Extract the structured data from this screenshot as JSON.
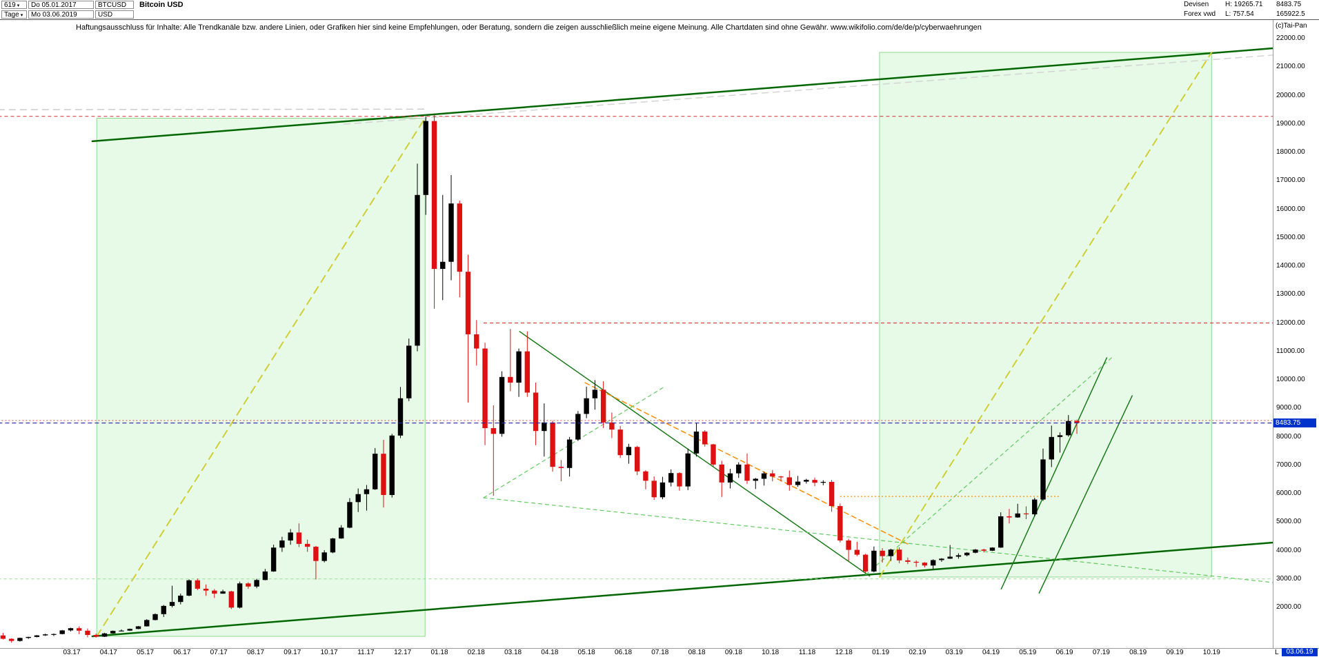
{
  "toolbar": {
    "bar_count": "619",
    "period_mode": "Tage",
    "start_date": "Do 05.01.2017",
    "end_date": "Mo 03.06.2019",
    "symbol": "BTCUSD",
    "currency": "USD",
    "title": "Bitcoin USD",
    "category": "Devisen",
    "source": "Forex vwd",
    "high_label": "H: 19265.71",
    "low_label": "L: 757.54",
    "corner_value_1": "8483.75",
    "corner_value_2": "165922.5"
  },
  "copyright": "(c)Tai-Pan",
  "disclaimer": "Haftungsausschluss für Inhalte: Alle Trendkanäle bzw. andere Linien, oder Grafiken hier sind keine Empfehlungen, oder Beratung, sondern die zeigen ausschließlich meine eigene Meinung. Alle Chartdaten sind ohne Gewähr.  www.wikifolio.com/de/de/p/cyberwaehrungen",
  "markers": {
    "current_price": "8483.75",
    "current_date": "03.06.19",
    "date_prefix": "L"
  },
  "chart_data": {
    "type": "candlestick",
    "title": "Bitcoin USD",
    "x_start": "05.01.2017",
    "x_end": "03.06.2019",
    "bars_total_daily": 619,
    "period_high": 19265.71,
    "period_low": 757.54,
    "last_close": 8483.75,
    "ylim": [
      2000,
      22000
    ],
    "y_ticks": [
      22000,
      21000,
      20000,
      19000,
      18000,
      17000,
      16000,
      15000,
      14000,
      13000,
      12000,
      11000,
      10000,
      9000,
      8000,
      7000,
      6000,
      5000,
      4000,
      3000,
      2000
    ],
    "x_ticks": [
      "03.17",
      "04.17",
      "05.17",
      "06.17",
      "07.17",
      "08.17",
      "09.17",
      "10.17",
      "11.17",
      "12.17",
      "01.18",
      "02.18",
      "03.18",
      "04.18",
      "05.18",
      "06.18",
      "07.18",
      "08.18",
      "09.18",
      "10.18",
      "11.18",
      "12.18",
      "01.19",
      "02.19",
      "03.19",
      "04.19",
      "05.19",
      "06.19",
      "07.19",
      "08.19",
      "09.19",
      "10.19"
    ],
    "colors": {
      "up": "#000000",
      "down": "#dd1111",
      "marker_blue": "#0033cc",
      "channel_green": "#006600"
    },
    "sampling_note": "daily chart approximated by weekly OHLC",
    "ohlc_weekly_approx": [
      [
        1013,
        1103,
        870,
        895
      ],
      [
        895,
        912,
        757.54,
        820
      ],
      [
        820,
        935,
        795,
        925
      ],
      [
        925,
        970,
        890,
        960
      ],
      [
        960,
        1025,
        945,
        1015
      ],
      [
        1015,
        1072,
        995,
        1050
      ],
      [
        1050,
        1082,
        990,
        1062
      ],
      [
        1062,
        1205,
        1050,
        1190
      ],
      [
        1190,
        1285,
        1150,
        1268
      ],
      [
        1268,
        1330,
        1060,
        1180
      ],
      [
        1180,
        1258,
        945,
        1030
      ],
      [
        1030,
        1080,
        930,
        968
      ],
      [
        968,
        1105,
        960,
        1085
      ],
      [
        1085,
        1185,
        1072,
        1172
      ],
      [
        1172,
        1225,
        1158,
        1183
      ],
      [
        1183,
        1255,
        1172,
        1242
      ],
      [
        1242,
        1345,
        1232,
        1333
      ],
      [
        1333,
        1585,
        1325,
        1555
      ],
      [
        1555,
        1788,
        1543,
        1762
      ],
      [
        1762,
        2085,
        1660,
        2052
      ],
      [
        2052,
        2760,
        2000,
        2190
      ],
      [
        2190,
        2485,
        2105,
        2412
      ],
      [
        2412,
        2985,
        2392,
        2952
      ],
      [
        2952,
        3012,
        2605,
        2655
      ],
      [
        2655,
        2805,
        2405,
        2590
      ],
      [
        2590,
        2645,
        2330,
        2482
      ],
      [
        2482,
        2622,
        2478,
        2562
      ],
      [
        2562,
        2582,
        1940,
        1992
      ],
      [
        1992,
        2905,
        1962,
        2842
      ],
      [
        2842,
        2882,
        2652,
        2732
      ],
      [
        2732,
        3005,
        2672,
        2962
      ],
      [
        2962,
        3352,
        2952,
        3262
      ],
      [
        3262,
        4205,
        3252,
        4102
      ],
      [
        4102,
        4482,
        3952,
        4352
      ],
      [
        4352,
        4752,
        4202,
        4632
      ],
      [
        4632,
        4952,
        4122,
        4232
      ],
      [
        4232,
        4382,
        3952,
        4132
      ],
      [
        4132,
        4162,
        2982,
        3632
      ],
      [
        3632,
        4012,
        3582,
        3932
      ],
      [
        3932,
        4442,
        3902,
        4422
      ],
      [
        4422,
        4892,
        4412,
        4802
      ],
      [
        4802,
        5842,
        4782,
        5702
      ],
      [
        5702,
        6182,
        5352,
        5982
      ],
      [
        5982,
        6302,
        5402,
        6152
      ],
      [
        6152,
        7602,
        6132,
        7402
      ],
      [
        7402,
        7892,
        5512,
        5952
      ],
      [
        5952,
        8102,
        5862,
        8042
      ],
      [
        8042,
        9752,
        7952,
        9352
      ],
      [
        9352,
        11452,
        9252,
        11202
      ],
      [
        11202,
        17602,
        11002,
        16502
      ],
      [
        16502,
        19265.71,
        15802,
        19102
      ],
      [
        19102,
        19302,
        12502,
        13902
      ],
      [
        13902,
        16502,
        12802,
        14152
      ],
      [
        14152,
        17202,
        13502,
        16202
      ],
      [
        16202,
        16302,
        12902,
        13802
      ],
      [
        13802,
        14402,
        9202,
        11602
      ],
      [
        11602,
        12102,
        10502,
        11102
      ],
      [
        11102,
        11302,
        7702,
        8302
      ],
      [
        8302,
        9102,
        5922,
        8102
      ],
      [
        8102,
        10302,
        8002,
        10102
      ],
      [
        10102,
        11792,
        9602,
        9902
      ],
      [
        9902,
        11102,
        9402,
        11002
      ],
      [
        11002,
        11702,
        9402,
        9552
      ],
      [
        9552,
        9902,
        7702,
        8202
      ],
      [
        8202,
        9172,
        7302,
        8502
      ],
      [
        8502,
        8562,
        6772,
        6942
      ],
      [
        6942,
        7182,
        6432,
        6902
      ],
      [
        6902,
        7992,
        6602,
        7902
      ],
      [
        7902,
        8902,
        7852,
        8802
      ],
      [
        8802,
        9762,
        8652,
        9352
      ],
      [
        9352,
        9992,
        8952,
        9652
      ],
      [
        9652,
        9952,
        8302,
        8502
      ],
      [
        8502,
        8852,
        7952,
        8252
      ],
      [
        8252,
        8382,
        7252,
        7352
      ],
      [
        7352,
        7752,
        7052,
        7642
      ],
      [
        7642,
        7682,
        6652,
        6782
      ],
      [
        6782,
        6822,
        6152,
        6452
      ],
      [
        6452,
        6602,
        5782,
        5872
      ],
      [
        5872,
        6592,
        5802,
        6392
      ],
      [
        6392,
        6852,
        6252,
        6722
      ],
      [
        6722,
        6752,
        6102,
        6252
      ],
      [
        6252,
        7582,
        6122,
        7412
      ],
      [
        7412,
        8482,
        7302,
        8182
      ],
      [
        8182,
        8232,
        7652,
        7732
      ],
      [
        7732,
        7752,
        6932,
        7022
      ],
      [
        7022,
        7152,
        5882,
        6392
      ],
      [
        6392,
        6872,
        6182,
        6712
      ],
      [
        6712,
        7102,
        6552,
        7022
      ],
      [
        7022,
        7412,
        6342,
        6452
      ],
      [
        6452,
        6552,
        6162,
        6522
      ],
      [
        6522,
        6772,
        6282,
        6712
      ],
      [
        6712,
        6832,
        6432,
        6602
      ],
      [
        6602,
        6622,
        6432,
        6572
      ],
      [
        6572,
        6812,
        6102,
        6302
      ],
      [
        6302,
        6622,
        6242,
        6422
      ],
      [
        6422,
        6522,
        6352,
        6482
      ],
      [
        6482,
        6562,
        6262,
        6382
      ],
      [
        6382,
        6472,
        6292,
        6412
      ],
      [
        6412,
        6482,
        5362,
        5562
      ],
      [
        5562,
        5652,
        4282,
        4352
      ],
      [
        4352,
        4412,
        3622,
        4022
      ],
      [
        4022,
        4302,
        3802,
        3852
      ],
      [
        3852,
        3882,
        3212,
        3262
      ],
      [
        3262,
        4142,
        3232,
        3992
      ],
      [
        3992,
        4082,
        3572,
        3802
      ],
      [
        3802,
        4062,
        3632,
        4032
      ],
      [
        4032,
        4112,
        3552,
        3652
      ],
      [
        3652,
        3752,
        3522,
        3602
      ],
      [
        3602,
        3652,
        3422,
        3572
      ],
      [
        3572,
        3592,
        3402,
        3472
      ],
      [
        3472,
        3692,
        3342,
        3662
      ],
      [
        3662,
        3732,
        3602,
        3712
      ],
      [
        3712,
        4192,
        3702,
        3782
      ],
      [
        3782,
        3902,
        3712,
        3832
      ],
      [
        3832,
        3942,
        3792,
        3922
      ],
      [
        3922,
        4052,
        3902,
        4032
      ],
      [
        4032,
        4062,
        3932,
        3992
      ],
      [
        3992,
        4112,
        3982,
        4102
      ],
      [
        4102,
        5342,
        4092,
        5202
      ],
      [
        5202,
        5462,
        4952,
        5162
      ],
      [
        5162,
        5642,
        5152,
        5302
      ],
      [
        5302,
        5552,
        5102,
        5272
      ],
      [
        5272,
        5852,
        5202,
        5792
      ],
      [
        5792,
        7582,
        5742,
        7202
      ],
      [
        7202,
        8392,
        6932,
        7992
      ],
      [
        7992,
        8152,
        7442,
        8052
      ],
      [
        8052,
        8762,
        8002,
        8552
      ],
      [
        8552,
        8602,
        8102,
        8483.75
      ]
    ],
    "annotations": {
      "boxes": [
        {
          "name": "rally-2017-box",
          "m1": 2.68,
          "p1": 980,
          "m2": 11.61,
          "p2": 19200,
          "fill": "rgba(180,235,180,0.32)",
          "stroke": "#8fd98f"
        },
        {
          "name": "rally-2019-projection-box",
          "m1": 23.97,
          "p1": 3067,
          "m2": 33.0,
          "p2": 21515,
          "fill": "rgba(180,235,180,0.32)",
          "stroke": "#8fd98f"
        }
      ],
      "lines": [
        {
          "name": "upper-channel-line",
          "m1": 2.56,
          "p1": 18390,
          "m2": 34.67,
          "p2": 21660,
          "color": "#006600",
          "w": 2.5
        },
        {
          "name": "lower-channel-line",
          "m1": 2.56,
          "p1": 982,
          "m2": 34.67,
          "p2": 4279,
          "color": "#006600",
          "w": 2.5
        },
        {
          "name": "rally-projection-diagonal-2017",
          "m1": 2.68,
          "p1": 982,
          "m2": 11.61,
          "p2": 19212,
          "color": "#cfcf33",
          "w": 2,
          "dash": "11,8"
        },
        {
          "name": "rally-projection-diagonal-2019",
          "m1": 23.97,
          "p1": 3067,
          "m2": 33.0,
          "p2": 21515,
          "color": "#cfcf33",
          "w": 2,
          "dash": "11,8"
        },
        {
          "name": "gray-projection-line-1",
          "m1": 0,
          "p1": 19500,
          "m2": 11.6,
          "p2": 19520,
          "color": "#cccccc",
          "w": 1.5,
          "dash": "9,7"
        },
        {
          "name": "gray-projection-line-2",
          "m1": 9.4,
          "p1": 18990,
          "m2": 34.67,
          "p2": 21420,
          "color": "#d4d4d4",
          "w": 1.5,
          "dash": "9,7"
        },
        {
          "name": "downtrend-2018-resistance",
          "m1": 14.18,
          "p1": 11700,
          "m2": 23.7,
          "p2": 3100,
          "color": "#1a7a1a",
          "w": 1.5
        },
        {
          "name": "orange-downtrend-line",
          "m1": 15.96,
          "p1": 9900,
          "m2": 24.78,
          "p2": 4200,
          "color": "#ff8c00",
          "w": 1.5,
          "dash": "7,5"
        },
        {
          "name": "green-dashed-support-2018",
          "m1": 13.2,
          "p1": 5855,
          "m2": 18.12,
          "p2": 9758,
          "color": "#5ecb5e",
          "w": 1.2,
          "dash": "5,5"
        },
        {
          "name": "green-dashed-long-decline",
          "m1": 13.2,
          "p1": 5855,
          "m2": 34.67,
          "p2": 2873,
          "color": "#5ecb5e",
          "w": 1.2,
          "dash": "5,5"
        },
        {
          "name": "green-dashed-2019-rise",
          "m1": 23.6,
          "p1": 3150,
          "m2": 30.3,
          "p2": 10800,
          "color": "#5ecb5e",
          "w": 1.2,
          "dash": "5,5"
        },
        {
          "name": "steep-channel-line-1",
          "m1": 27.28,
          "p1": 2648,
          "m2": 30.15,
          "p2": 10776,
          "color": "#1a7a1a",
          "w": 1.5
        },
        {
          "name": "steep-channel-line-2",
          "m1": 28.31,
          "p1": 2503,
          "m2": 30.84,
          "p2": 9442,
          "color": "#1a7a1a",
          "w": 1.5
        }
      ],
      "hlines": [
        {
          "name": "all-time-high-line",
          "p": 19265.71,
          "m1": 0,
          "m2": 34.67,
          "color": "#cc3333",
          "w": 1,
          "dash": "5,4"
        },
        {
          "name": "resistance-12000-line",
          "p": 12000,
          "m1": 13.2,
          "m2": 34.67,
          "color": "#dd2222",
          "w": 1,
          "dash": "5,4"
        },
        {
          "name": "red-dotted-8570-line",
          "p": 8570,
          "m1": 0,
          "m2": 34.67,
          "color": "#cc4444",
          "w": 1,
          "dash": "2,3"
        },
        {
          "name": "green-dashed-3000-line",
          "p": 3000,
          "m1": 0,
          "m2": 34.67,
          "color": "#8ae08a",
          "w": 1,
          "dash": "4,4"
        },
        {
          "name": "orange-dotted-5900-line",
          "p": 5900,
          "m1": 22.9,
          "m2": 28.9,
          "color": "#ff8c00",
          "w": 1.2,
          "dash": "2,3"
        },
        {
          "name": "current-price-line",
          "p": 8483.75,
          "m1": 0,
          "m2": 34.67,
          "color": "#2222aa",
          "w": 1.2,
          "dash": "6,4",
          "above": true
        }
      ]
    }
  }
}
